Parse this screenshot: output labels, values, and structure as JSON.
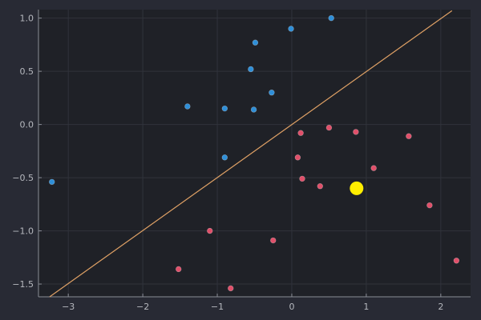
{
  "chart_data": {
    "type": "scatter",
    "xlim": [
      -3.4,
      2.4
    ],
    "ylim": [
      -1.62,
      1.08
    ],
    "x_ticks": [
      -3,
      -2,
      -1,
      0,
      1,
      2
    ],
    "y_ticks": [
      -1.5,
      -1.0,
      -0.5,
      0.0,
      0.5,
      1.0
    ],
    "x_tick_labels": [
      "−3",
      "−2",
      "−1",
      "0",
      "1",
      "2"
    ],
    "y_tick_labels": [
      "−1.5",
      "−1.0",
      "−0.5",
      "0.0",
      "0.5",
      "1.0"
    ],
    "grid": true,
    "legend": "none",
    "colors": {
      "background": "#282a34",
      "plot_area": "#1f2127",
      "grid": "#30333b",
      "axis": "#8a8d96",
      "class_a": "#2f8fd8",
      "class_b": "#e0506a",
      "line": "#dea065",
      "highlight": "#ffee00"
    },
    "series": [
      {
        "values": [
          {
            "x": 0.53,
            "y": 1.0
          },
          {
            "x": -0.01,
            "y": 0.9
          },
          {
            "x": -0.49,
            "y": 0.77
          },
          {
            "x": -0.55,
            "y": 0.52
          },
          {
            "x": -0.27,
            "y": 0.3
          },
          {
            "x": -1.4,
            "y": 0.17
          },
          {
            "x": -0.9,
            "y": 0.15
          },
          {
            "x": -0.51,
            "y": 0.14
          },
          {
            "x": -0.9,
            "y": -0.31
          },
          {
            "x": -3.22,
            "y": -0.54
          }
        ]
      },
      {
        "values": [
          {
            "x": 0.5,
            "y": -0.03
          },
          {
            "x": 0.86,
            "y": -0.07
          },
          {
            "x": 0.12,
            "y": -0.08
          },
          {
            "x": 1.57,
            "y": -0.11
          },
          {
            "x": 0.08,
            "y": -0.31
          },
          {
            "x": 1.1,
            "y": -0.41
          },
          {
            "x": 0.14,
            "y": -0.51
          },
          {
            "x": 0.38,
            "y": -0.58
          },
          {
            "x": 1.85,
            "y": -0.76
          },
          {
            "x": -1.1,
            "y": -1.0
          },
          {
            "x": -0.25,
            "y": -1.09
          },
          {
            "x": 2.21,
            "y": -1.28
          },
          {
            "x": -1.52,
            "y": -1.36
          },
          {
            "x": -0.82,
            "y": -1.54
          }
        ]
      }
    ],
    "highlight_point": {
      "x": 0.87,
      "y": -0.6
    },
    "line": {
      "x": [
        -3.25,
        2.15
      ],
      "y": [
        -1.62,
        1.07
      ]
    }
  }
}
